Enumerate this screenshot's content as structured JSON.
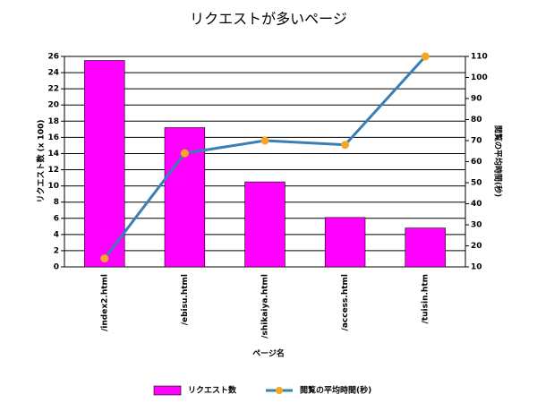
{
  "chart_data": {
    "type": "combo",
    "title": "リクエストが多いページ",
    "x_label": "ページ名",
    "y_label": "リクエスト数 (x 100)",
    "y2_label": "閲覧の平均時間(秒)",
    "categories": [
      "/index2.html",
      "/ebisu.html",
      "/shikaiya.html",
      "/access.html",
      "/tuisin.htm"
    ],
    "series": [
      {
        "name": "リクエスト数",
        "type": "bar",
        "color": "#ff00ff",
        "values": [
          25.5,
          17.2,
          10.5,
          6.1,
          4.8
        ]
      },
      {
        "name": "閲覧の平均時間(秒)",
        "type": "line",
        "axis": "y2",
        "color": "#3a7fb5",
        "marker_color": "#f5a623",
        "values": [
          14,
          64,
          70,
          68,
          110
        ]
      }
    ],
    "ylim": [
      0,
      26
    ],
    "yticks": [
      0,
      2,
      4,
      6,
      8,
      10,
      12,
      14,
      16,
      18,
      20,
      22,
      24,
      26
    ],
    "y2lim": [
      10,
      110
    ],
    "y2ticks": [
      10,
      20,
      30,
      40,
      50,
      60,
      70,
      80,
      90,
      100,
      110
    ],
    "grid": true,
    "legend": "bottom"
  }
}
